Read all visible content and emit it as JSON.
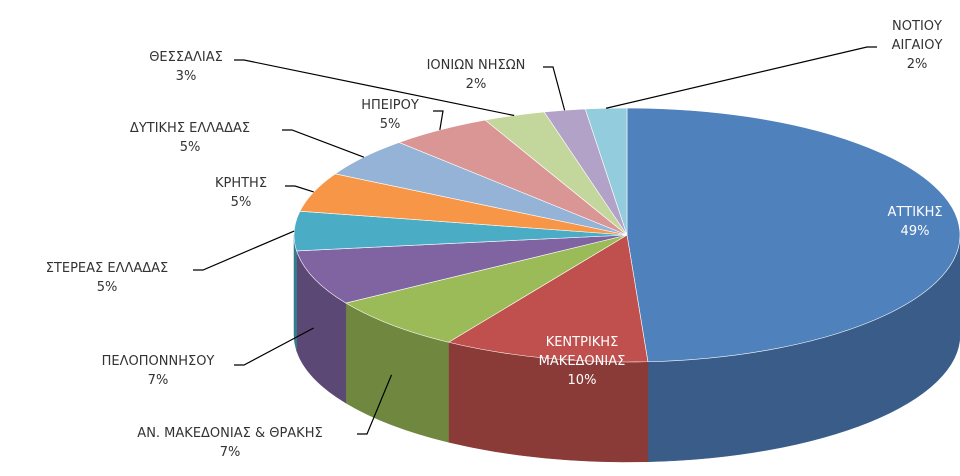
{
  "chart_data": {
    "type": "pie",
    "categories": [
      "ΑΤΤΙΚΗΣ",
      "ΚΕΝΤΡΙΚΗΣ\nΜΑΚΕΔΟΝΙΑΣ",
      "ΑΝ. ΜΑΚΕΔΟΝΙΑΣ & ΘΡΑΚΗΣ",
      "ΠΕΛΟΠΟΝΝΗΣΟΥ",
      "ΣΤΕΡΕΑΣ ΕΛΛΑΔΑΣ",
      "ΚΡΗΤΗΣ",
      "ΔΥΤΙΚΗΣ ΕΛΛΑΔΑΣ",
      "ΗΠΕΙΡΟΥ",
      "ΘΕΣΣΑΛΙΑΣ",
      "ΙΟΝΙΩΝ ΝΗΣΩΝ",
      "ΝΟΤΙΟΥ\nΑΙΓΑΙΟΥ"
    ],
    "values": [
      49,
      10,
      7,
      7,
      5,
      5,
      5,
      5,
      3,
      2,
      2
    ],
    "value_labels": [
      "49%",
      "10%",
      "7%",
      "7%",
      "5%",
      "5%",
      "5%",
      "5%",
      "3%",
      "2%",
      "2%"
    ],
    "colors": [
      "#4f81bd",
      "#c0504d",
      "#9bbb59",
      "#8064a2",
      "#4bacc6",
      "#f79646",
      "#95b3d7",
      "#d99694",
      "#c3d69b",
      "#b3a2c7",
      "#93cddd"
    ]
  }
}
